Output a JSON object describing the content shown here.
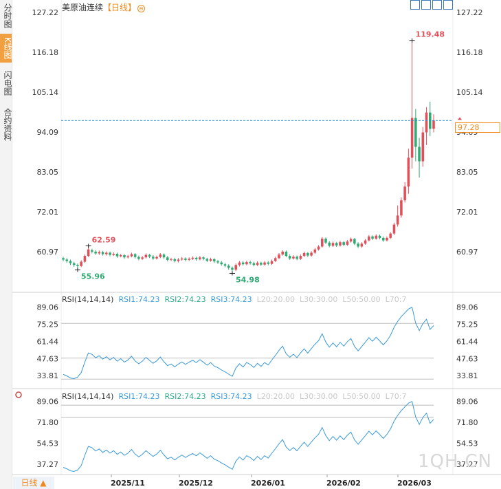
{
  "sidebar": {
    "tabs": [
      {
        "label": "分时图",
        "active": false
      },
      {
        "label": "K线图",
        "active": true
      },
      {
        "label": "闪电图",
        "active": false
      },
      {
        "label": "合约资料",
        "active": false
      }
    ]
  },
  "header": {
    "title": "美原油连续",
    "period": "【日线】",
    "adjust_icon": "adjust-circle-icon",
    "toolbar_icons": [
      "move-left-icon",
      "move-right-icon",
      "chart-type-icon",
      "zoom-in-icon",
      "zoom-out-icon"
    ]
  },
  "price_tag": "97.28",
  "bottom_tab": {
    "label": "日线 ▲"
  },
  "watermark": "1QH.CN",
  "colors": {
    "up": "#e0505a",
    "down": "#2eaa72",
    "ref_line": "#1a8cd8",
    "rsi1": "#3a9ad9",
    "rsi2": "#2eaa8a",
    "rsi3": "#3a9ad9",
    "level": "#bbbbbb",
    "accent": "#f08a1c"
  },
  "chart_data": [
    {
      "type": "candlestick",
      "title": "美原油连续",
      "y_ticks": [
        "127.22",
        "116.18",
        "105.14",
        "94.09",
        "83.05",
        "72.01",
        "60.97"
      ],
      "ylim": [
        54.5,
        128.2
      ],
      "x_tick_labels": [
        "2025/11",
        "2025/12",
        "2026/01",
        "2026/02",
        "2026/03"
      ],
      "current_price": 97.28,
      "annotations": [
        {
          "label": "62.59",
          "value": 62.59,
          "kind": "high"
        },
        {
          "label": "55.96",
          "value": 55.96,
          "kind": "low"
        },
        {
          "label": "54.98",
          "value": 54.98,
          "kind": "low"
        },
        {
          "label": "119.48",
          "value": 119.48,
          "kind": "high"
        }
      ],
      "candles": [
        [
          59.2,
          58.8,
          59.6,
          58.3
        ],
        [
          58.8,
          58.4,
          59.2,
          57.9
        ],
        [
          58.4,
          57.8,
          58.8,
          57.3
        ],
        [
          57.8,
          57.3,
          58.2,
          56.8
        ],
        [
          57.3,
          57.0,
          57.7,
          55.96
        ],
        [
          57.0,
          58.2,
          58.6,
          56.7
        ],
        [
          58.2,
          59.8,
          60.2,
          57.9
        ],
        [
          59.8,
          61.6,
          62.59,
          59.5
        ],
        [
          61.4,
          61.0,
          61.8,
          60.5
        ],
        [
          61.0,
          60.5,
          61.4,
          60.1
        ],
        [
          60.5,
          60.9,
          61.3,
          60.1
        ],
        [
          60.9,
          60.3,
          61.2,
          59.9
        ],
        [
          60.3,
          60.7,
          61.1,
          59.9
        ],
        [
          60.7,
          60.1,
          61.0,
          59.7
        ],
        [
          60.1,
          60.4,
          60.8,
          59.8
        ],
        [
          60.4,
          59.7,
          60.7,
          59.3
        ],
        [
          59.7,
          60.0,
          60.4,
          59.4
        ],
        [
          60.0,
          59.4,
          60.3,
          59.0
        ],
        [
          59.4,
          59.7,
          60.1,
          59.1
        ],
        [
          59.7,
          60.3,
          60.7,
          59.4
        ],
        [
          60.3,
          59.5,
          60.6,
          59.1
        ],
        [
          59.5,
          59.0,
          59.9,
          58.6
        ],
        [
          59.0,
          59.4,
          59.8,
          58.7
        ],
        [
          59.4,
          60.1,
          60.5,
          59.1
        ],
        [
          60.1,
          59.6,
          60.4,
          59.2
        ],
        [
          59.6,
          59.1,
          60.0,
          58.7
        ],
        [
          59.1,
          59.5,
          59.9,
          58.8
        ],
        [
          59.5,
          60.2,
          60.6,
          59.2
        ],
        [
          60.2,
          59.4,
          60.5,
          59.0
        ],
        [
          59.4,
          58.7,
          59.8,
          58.3
        ],
        [
          58.7,
          58.9,
          59.3,
          58.4
        ],
        [
          58.9,
          58.4,
          59.3,
          58.0
        ],
        [
          58.4,
          58.8,
          59.2,
          58.0
        ],
        [
          58.8,
          59.1,
          59.5,
          58.5
        ],
        [
          59.1,
          58.7,
          59.4,
          58.3
        ],
        [
          58.7,
          59.0,
          59.4,
          58.4
        ],
        [
          59.0,
          59.3,
          59.7,
          58.7
        ],
        [
          59.3,
          58.9,
          59.6,
          58.5
        ],
        [
          58.9,
          59.4,
          59.8,
          58.6
        ],
        [
          59.4,
          59.0,
          59.7,
          58.6
        ],
        [
          59.0,
          58.5,
          59.3,
          58.1
        ],
        [
          58.5,
          58.9,
          59.3,
          58.2
        ],
        [
          58.9,
          58.3,
          59.2,
          57.9
        ],
        [
          58.3,
          58.0,
          58.7,
          57.6
        ],
        [
          58.0,
          57.5,
          58.4,
          57.1
        ],
        [
          57.5,
          57.1,
          57.9,
          56.7
        ],
        [
          57.1,
          56.5,
          57.5,
          56.0
        ],
        [
          56.5,
          56.0,
          56.9,
          54.98
        ],
        [
          56.0,
          57.3,
          57.7,
          55.6
        ],
        [
          57.3,
          58.0,
          58.4,
          56.9
        ],
        [
          58.0,
          57.5,
          58.4,
          57.1
        ],
        [
          57.5,
          58.1,
          58.5,
          57.2
        ],
        [
          58.1,
          57.8,
          58.5,
          57.4
        ],
        [
          57.8,
          57.3,
          58.2,
          56.9
        ],
        [
          57.3,
          57.9,
          58.3,
          57.0
        ],
        [
          57.9,
          57.4,
          58.2,
          57.0
        ],
        [
          57.4,
          58.0,
          58.4,
          57.1
        ],
        [
          58.0,
          57.6,
          58.4,
          57.2
        ],
        [
          57.6,
          58.4,
          58.8,
          57.3
        ],
        [
          58.4,
          59.2,
          59.6,
          58.1
        ],
        [
          59.2,
          60.2,
          60.6,
          58.9
        ],
        [
          60.2,
          61.0,
          61.4,
          59.9
        ],
        [
          61.0,
          59.8,
          61.3,
          59.5
        ],
        [
          59.8,
          59.1,
          60.2,
          58.7
        ],
        [
          59.1,
          59.6,
          60.0,
          58.8
        ],
        [
          59.6,
          59.0,
          59.9,
          58.6
        ],
        [
          59.0,
          59.8,
          60.2,
          58.7
        ],
        [
          59.8,
          60.6,
          61.0,
          59.5
        ],
        [
          60.6,
          59.9,
          60.9,
          59.5
        ],
        [
          59.9,
          60.7,
          61.1,
          59.6
        ],
        [
          60.7,
          61.6,
          62.0,
          60.4
        ],
        [
          61.6,
          62.4,
          62.8,
          61.3
        ],
        [
          62.4,
          64.6,
          65.0,
          62.1
        ],
        [
          64.6,
          63.5,
          64.9,
          63.1
        ],
        [
          63.5,
          62.6,
          63.9,
          62.2
        ],
        [
          62.6,
          63.4,
          63.8,
          62.3
        ],
        [
          63.4,
          62.7,
          63.7,
          62.3
        ],
        [
          62.7,
          63.6,
          64.0,
          62.4
        ],
        [
          63.6,
          62.9,
          63.9,
          62.5
        ],
        [
          62.9,
          63.8,
          64.2,
          62.6
        ],
        [
          63.8,
          64.5,
          64.9,
          63.5
        ],
        [
          64.5,
          63.2,
          64.8,
          62.8
        ],
        [
          63.2,
          62.4,
          63.6,
          62.0
        ],
        [
          62.4,
          63.2,
          63.6,
          62.1
        ],
        [
          63.2,
          64.1,
          64.5,
          62.9
        ],
        [
          64.1,
          65.2,
          65.6,
          63.8
        ],
        [
          65.2,
          64.6,
          65.5,
          64.2
        ],
        [
          64.6,
          65.4,
          65.8,
          64.3
        ],
        [
          65.4,
          64.8,
          65.7,
          64.4
        ],
        [
          64.8,
          64.1,
          65.2,
          63.7
        ],
        [
          64.1,
          64.8,
          65.2,
          63.8
        ],
        [
          64.8,
          66.0,
          66.4,
          64.5
        ],
        [
          66.0,
          68.5,
          69.0,
          65.6
        ],
        [
          68.5,
          71.0,
          73.8,
          67.9
        ],
        [
          71.0,
          75.2,
          76.0,
          70.4
        ],
        [
          75.2,
          79.0,
          80.2,
          74.6
        ],
        [
          79.0,
          87.0,
          89.5,
          77.0
        ],
        [
          87.0,
          98.0,
          119.48,
          84.0
        ],
        [
          98.0,
          90.0,
          100.5,
          86.0
        ],
        [
          90.0,
          86.0,
          92.5,
          81.5
        ],
        [
          86.0,
          94.0,
          95.5,
          84.5
        ],
        [
          94.0,
          99.5,
          101.0,
          90.5
        ],
        [
          99.5,
          95.0,
          102.5,
          93.0
        ],
        [
          95.0,
          97.28,
          99.0,
          94.0
        ]
      ]
    },
    {
      "type": "line",
      "title": "RSI(14,14,14)",
      "legend": [
        "RSI(14,14,14)",
        "RSI1:74.23",
        "RSI2:74.23",
        "RSI3:74.23",
        "L20:20.00",
        "L30:30.00",
        "L50:50.00",
        "L70:7"
      ],
      "y_ticks": [
        "89.06",
        "75.25",
        "61.44",
        "47.63",
        "33.81"
      ],
      "ylim": [
        30.0,
        90.0
      ],
      "levels": [
        70,
        50,
        30
      ],
      "series_values": [
        34.8,
        33.6,
        31.9,
        31.4,
        32.6,
        36.3,
        44.7,
        52.1,
        51.0,
        48.2,
        49.9,
        47.1,
        49.1,
        46.5,
        48.5,
        45.5,
        47.5,
        44.7,
        46.5,
        49.5,
        45.6,
        43.4,
        45.5,
        48.5,
        46.1,
        43.8,
        45.8,
        48.9,
        45.0,
        41.9,
        43.2,
        40.9,
        43.1,
        44.9,
        42.9,
        44.7,
        46.2,
        44.3,
        46.7,
        44.6,
        42.2,
        44.4,
        41.5,
        40.3,
        38.4,
        36.9,
        35.0,
        33.2,
        39.9,
        43.4,
        40.8,
        44.4,
        42.9,
        40.4,
        43.8,
        41.2,
        44.4,
        42.4,
        46.4,
        50.1,
        54.2,
        57.6,
        51.5,
        48.6,
        51.1,
        48.4,
        52.2,
        55.5,
        52.0,
        55.7,
        59.1,
        62.0,
        67.6,
        61.0,
        56.8,
        60.2,
        57.1,
        60.7,
        57.6,
        61.2,
        63.8,
        57.4,
        53.8,
        57.3,
        60.9,
        64.5,
        61.6,
        64.8,
        61.9,
        58.6,
        61.9,
        66.4,
        72.8,
        77.6,
        81.5,
        84.5,
        87.6,
        89.06,
        76.3,
        70.2,
        75.8,
        79.4,
        71.1,
        74.23
      ]
    },
    {
      "type": "line",
      "title": "RSI(14,14,14)",
      "legend": [
        "RSI(14,14,14)",
        "RSI1:74.23",
        "RSI2:74.23",
        "RSI3:74.23",
        "L20:20.00",
        "L30:30.00",
        "L50:50.00",
        "L70:7"
      ],
      "y_ticks": [
        "89.06",
        "71.80",
        "54.53",
        "37.27"
      ],
      "ylim": [
        30.0,
        90.0
      ],
      "levels": [
        80,
        70
      ],
      "x_tick_labels": [
        "2025/11",
        "2025/12",
        "2026/01",
        "2026/02",
        "2026/03"
      ],
      "series_values": [
        34.8,
        33.6,
        31.9,
        31.4,
        32.6,
        36.3,
        44.7,
        52.1,
        51.0,
        48.2,
        49.9,
        47.1,
        49.1,
        46.5,
        48.5,
        45.5,
        47.5,
        44.7,
        46.5,
        49.5,
        45.6,
        43.4,
        45.5,
        48.5,
        46.1,
        43.8,
        45.8,
        48.9,
        45.0,
        41.9,
        43.2,
        40.9,
        43.1,
        44.9,
        42.9,
        44.7,
        46.2,
        44.3,
        46.7,
        44.6,
        42.2,
        44.4,
        41.5,
        40.3,
        38.4,
        36.9,
        35.0,
        33.2,
        39.9,
        43.4,
        40.8,
        44.4,
        42.9,
        40.4,
        43.8,
        41.2,
        44.4,
        42.4,
        46.4,
        50.1,
        54.2,
        57.6,
        51.5,
        48.6,
        51.1,
        48.4,
        52.2,
        55.5,
        52.0,
        55.7,
        59.1,
        62.0,
        67.6,
        61.0,
        56.8,
        60.2,
        57.1,
        60.7,
        57.6,
        61.2,
        63.8,
        57.4,
        53.8,
        57.3,
        60.9,
        64.5,
        61.6,
        64.8,
        61.9,
        58.6,
        61.9,
        66.4,
        72.8,
        77.6,
        81.5,
        84.5,
        87.6,
        89.06,
        76.3,
        70.2,
        75.8,
        79.4,
        71.1,
        74.23
      ]
    }
  ]
}
